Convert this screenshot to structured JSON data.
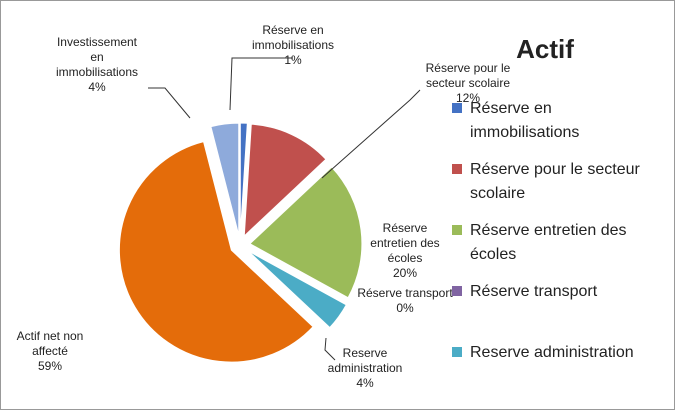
{
  "chart_data": {
    "type": "pie",
    "title": "Actif",
    "categories": [
      "Réserve en immobilisations",
      "Réserve pour le secteur scolaire",
      "Réserve entretien des écoles",
      "Réserve transport",
      "Reserve administration",
      "Actif net non affecté",
      "Investissement en immobilisations"
    ],
    "values": [
      1,
      12,
      20,
      0,
      4,
      59,
      4
    ],
    "value_labels": [
      "1%",
      "12%",
      "20%",
      "0%",
      "4%",
      "59%",
      "4%"
    ],
    "colors": [
      "#4472c4",
      "#c0504d",
      "#9bbb59",
      "#8064a2",
      "#4bacc6",
      "#e46c0a",
      "#8eaadb"
    ],
    "legend_items": [
      "Réserve en immobilisations",
      "Réserve pour le secteur scolaire",
      "Réserve entretien des écoles",
      "Réserve transport",
      "Reserve administration"
    ]
  }
}
